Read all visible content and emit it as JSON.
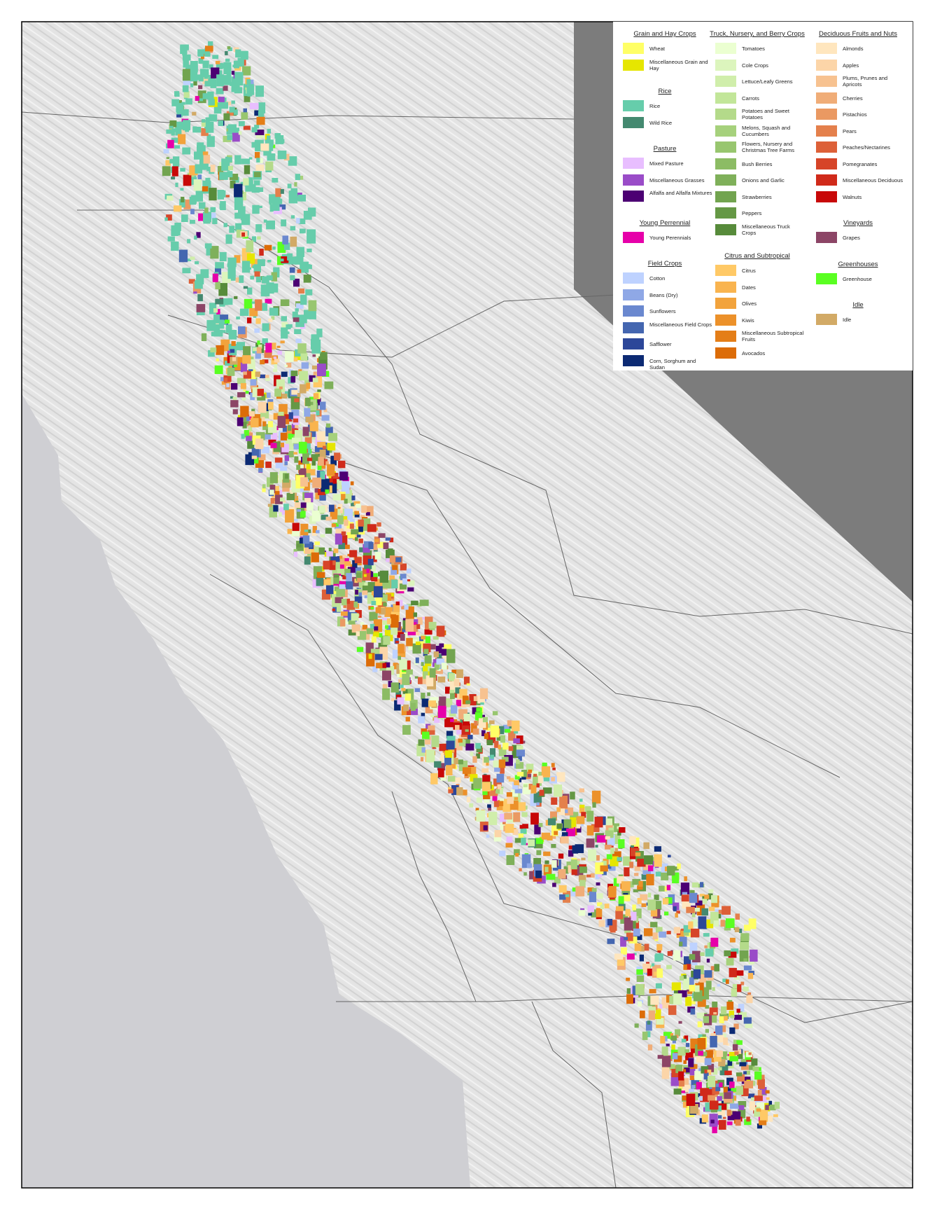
{
  "legend": {
    "columns": [
      [
        {
          "title": "Grain and Hay Crops",
          "items": [
            {
              "label": "Wheat",
              "color": "#ffff66"
            },
            {
              "label": "Miscellaneous Grain and Hay",
              "color": "#e6e600"
            }
          ]
        },
        {
          "title": "Rice",
          "items": [
            {
              "label": "Rice",
              "color": "#66cdab"
            },
            {
              "label": "Wild Rice",
              "color": "#448970"
            }
          ]
        },
        {
          "title": "Pasture",
          "items": [
            {
              "label": "Mixed Pasture",
              "color": "#e8beff"
            },
            {
              "label": "Miscellaneous Grasses",
              "color": "#9a4cc8"
            },
            {
              "label": "Alfalfa and Alfalfa Mixtures",
              "color": "#4c0073"
            }
          ]
        },
        {
          "title": "Young Perrennial",
          "items": [
            {
              "label": "Young Perennials",
              "color": "#e600a9"
            }
          ]
        },
        {
          "title": "Field Crops",
          "items": [
            {
              "label": "Cotton",
              "color": "#bed2ff"
            },
            {
              "label": "Beans (Dry)",
              "color": "#8fa8e6"
            },
            {
              "label": "Sunflowers",
              "color": "#6a88cf"
            },
            {
              "label": "Miscellaneous Field Crops",
              "color": "#4466b0"
            },
            {
              "label": "Safflower",
              "color": "#2c4799"
            },
            {
              "label": "Corn, Sorghum and Sudan",
              "color": "#0c2a73"
            }
          ]
        }
      ],
      [
        {
          "title": "Truck, Nursery, and Berry Crops",
          "items": [
            {
              "label": "Tomatoes",
              "color": "#ebffd1"
            },
            {
              "label": "Cole Crops",
              "color": "#dcf5bd"
            },
            {
              "label": "Lettuce/Leafy Greens",
              "color": "#d0eeab"
            },
            {
              "label": "Carrots",
              "color": "#c2e699"
            },
            {
              "label": "Potatoes and Sweet Potatoes",
              "color": "#b4da8a"
            },
            {
              "label": "Melons, Squash and Cucumbers",
              "color": "#a6d17c"
            },
            {
              "label": "Flowers, Nursery and Christmas Tree Farms",
              "color": "#98c66f"
            },
            {
              "label": "Bush Berries",
              "color": "#8cbc64"
            },
            {
              "label": "Onions and Garlic",
              "color": "#7fb05a"
            },
            {
              "label": "Strawberries",
              "color": "#72a44f"
            },
            {
              "label": "Peppers",
              "color": "#659845"
            },
            {
              "label": "Miscellaneous Truck Crops",
              "color": "#578b3b"
            }
          ]
        },
        {
          "title": "Citrus and Subtropical",
          "items": [
            {
              "label": "Citrus",
              "color": "#ffc966"
            },
            {
              "label": "Dates",
              "color": "#f9b44f"
            },
            {
              "label": "Olives",
              "color": "#f2a33c"
            },
            {
              "label": "Kiwis",
              "color": "#ec912a"
            },
            {
              "label": "Miscellaneous Subtropical Fruits",
              "color": "#e47e18"
            },
            {
              "label": "Avocados",
              "color": "#dc6c08"
            }
          ]
        }
      ],
      [
        {
          "title": "Deciduous Fruits and Nuts",
          "items": [
            {
              "label": "Almonds",
              "color": "#ffe6be"
            },
            {
              "label": "Apples",
              "color": "#fcd5a8"
            },
            {
              "label": "Plums, Prunes and Apricots",
              "color": "#f7c290"
            },
            {
              "label": "Cherries",
              "color": "#f0ad78"
            },
            {
              "label": "Pistachios",
              "color": "#ea9962"
            },
            {
              "label": "Pears",
              "color": "#e4804c"
            },
            {
              "label": "Peaches/Nectarines",
              "color": "#dd6038"
            },
            {
              "label": "Pomegranates",
              "color": "#d64428"
            },
            {
              "label": "Miscellaneous Deciduous",
              "color": "#d02a1a"
            },
            {
              "label": "Walnuts",
              "color": "#c80808"
            }
          ]
        },
        {
          "title": "Vineyards",
          "items": [
            {
              "label": "Grapes",
              "color": "#8c4566"
            }
          ]
        },
        {
          "title": "Greenhouses",
          "items": [
            {
              "label": "Greenhouse",
              "color": "#5aff22"
            }
          ]
        },
        {
          "title": "Idle",
          "items": [
            {
              "label": "Idle",
              "color": "#d2aa66"
            }
          ]
        }
      ]
    ]
  }
}
